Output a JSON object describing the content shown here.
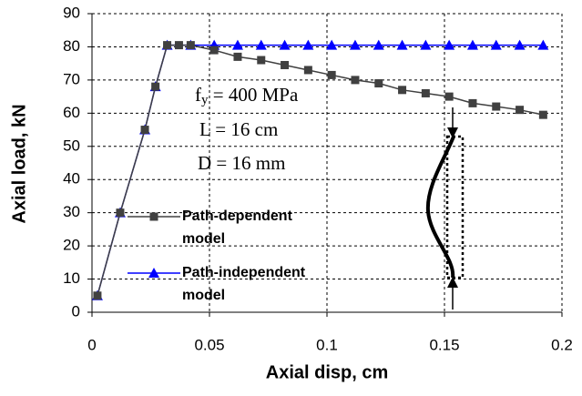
{
  "chart_data": {
    "type": "line",
    "x_label": "Axial disp, cm",
    "y_label": "Axial load, kN",
    "xlim": [
      0,
      0.2
    ],
    "xticks": [
      0,
      0.05,
      0.1,
      0.15,
      0.2
    ],
    "ylim": [
      0,
      90
    ],
    "yticks": [
      0,
      10,
      20,
      30,
      40,
      50,
      60,
      70,
      80,
      90
    ],
    "grid": true,
    "legend": "lower left",
    "annotations": {
      "fy": {
        "symbol": "f",
        "subscript": "y",
        "text": " = 400 MPa"
      },
      "length": "L = 16 cm",
      "diameter": "D = 16 mm"
    },
    "series": [
      {
        "name": "Path-dependent model",
        "color": "#404040",
        "marker": "square",
        "x": [
          0.0023,
          0.012,
          0.0225,
          0.027,
          0.032,
          0.037,
          0.042,
          0.052,
          0.062,
          0.072,
          0.082,
          0.092,
          0.102,
          0.112,
          0.122,
          0.132,
          0.142,
          0.152,
          0.162,
          0.172,
          0.182,
          0.192
        ],
        "values": [
          5,
          30,
          55,
          68,
          80.5,
          80.5,
          80.5,
          79,
          77,
          76,
          74.5,
          73,
          71.5,
          70,
          69,
          67,
          66,
          65,
          63,
          62,
          61,
          59.5
        ]
      },
      {
        "name": "Path-independent model",
        "color": "#0000ff",
        "marker": "triangle",
        "x": [
          0.0023,
          0.012,
          0.0225,
          0.027,
          0.032,
          0.042,
          0.052,
          0.062,
          0.072,
          0.082,
          0.092,
          0.102,
          0.112,
          0.122,
          0.132,
          0.142,
          0.152,
          0.162,
          0.172,
          0.182,
          0.192
        ],
        "values": [
          5,
          30,
          55,
          68,
          80.5,
          80.5,
          80.5,
          80.5,
          80.5,
          80.5,
          80.5,
          80.5,
          80.5,
          80.5,
          80.5,
          80.5,
          80.5,
          80.5,
          80.5,
          80.5,
          80.5
        ]
      }
    ]
  }
}
